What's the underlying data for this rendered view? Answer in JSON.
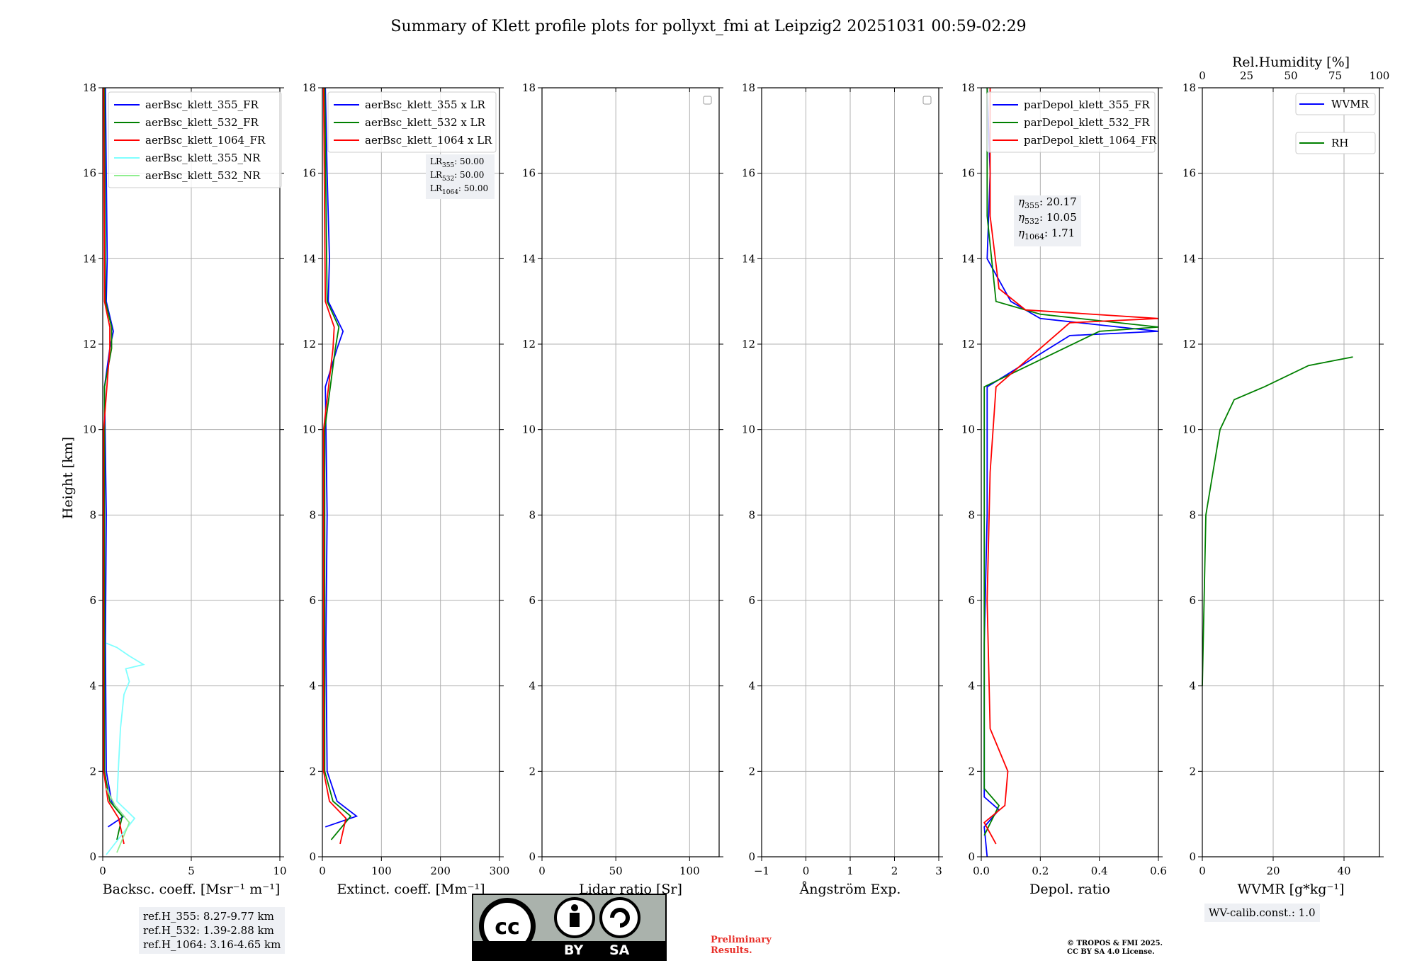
{
  "title": "Summary of Klett profile plots for pollyxt_fmi at Leipzig2 20251031 00:59-02:29",
  "y_axis_label": "Height [km]",
  "y_ticks": [
    "0",
    "2",
    "4",
    "6",
    "8",
    "10",
    "12",
    "14",
    "16",
    "18"
  ],
  "colors": {
    "b355": "#0000ff",
    "b532": "#008000",
    "b1064": "#ff0000",
    "nr355": "#7fffff",
    "nr532": "#90ee90"
  },
  "chart_data": [
    {
      "type": "line",
      "name": "backscatter",
      "xlabel": "Backsc. coeff. [Msr⁻¹ m⁻¹]",
      "ylabel": "Height [km]",
      "xlim": [
        0,
        10
      ],
      "ylim": [
        0,
        18
      ],
      "xticks": [
        "0",
        "5",
        "10"
      ],
      "legend": [
        "aerBsc_klett_355_FR",
        "aerBsc_klett_532_FR",
        "aerBsc_klett_1064_FR",
        "aerBsc_klett_355_NR",
        "aerBsc_klett_532_NR"
      ],
      "series": [
        {
          "name": "aerBsc_klett_355_FR",
          "color": "#0000ff",
          "points": [
            [
              0.3,
              0.7
            ],
            [
              1.2,
              0.95
            ],
            [
              0.5,
              1.3
            ],
            [
              0.2,
              2
            ],
            [
              0.15,
              5
            ],
            [
              0.2,
              8
            ],
            [
              0.1,
              11
            ],
            [
              0.4,
              11.9
            ],
            [
              0.6,
              12.3
            ],
            [
              0.2,
              13
            ],
            [
              0.25,
              14
            ],
            [
              0.2,
              16
            ],
            [
              0.15,
              18
            ]
          ]
        },
        {
          "name": "aerBsc_klett_532_FR",
          "color": "#008000",
          "points": [
            [
              0.8,
              0.4
            ],
            [
              1.1,
              0.95
            ],
            [
              0.4,
              1.3
            ],
            [
              0.1,
              2
            ],
            [
              0.1,
              6
            ],
            [
              0.1,
              11
            ],
            [
              0.5,
              11.9
            ],
            [
              0.5,
              12.4
            ],
            [
              0.15,
              13
            ],
            [
              0.1,
              18
            ]
          ]
        },
        {
          "name": "aerBsc_klett_1064_FR",
          "color": "#ff0000",
          "points": [
            [
              1.2,
              0.3
            ],
            [
              0.9,
              0.9
            ],
            [
              0.3,
              1.3
            ],
            [
              0.05,
              2
            ],
            [
              0.05,
              10
            ],
            [
              0.4,
              11.9
            ],
            [
              0.4,
              12.4
            ],
            [
              0.1,
              13
            ],
            [
              0.05,
              18
            ]
          ]
        },
        {
          "name": "aerBsc_klett_355_NR",
          "color": "#7fffff",
          "points": [
            [
              0.2,
              0.05
            ],
            [
              1.8,
              0.9
            ],
            [
              0.8,
              1.3
            ],
            [
              0.9,
              2.2
            ],
            [
              1.0,
              3
            ],
            [
              1.2,
              3.8
            ],
            [
              1.5,
              4.1
            ],
            [
              1.3,
              4.4
            ],
            [
              2.3,
              4.5
            ],
            [
              1.5,
              4.7
            ],
            [
              0.8,
              4.9
            ],
            [
              0.2,
              5.0
            ]
          ]
        },
        {
          "name": "aerBsc_klett_532_NR",
          "color": "#90ee90",
          "points": [
            [
              0.8,
              0.1
            ],
            [
              1.5,
              0.8
            ],
            [
              0.7,
              1.2
            ],
            [
              0.2,
              1.6
            ]
          ]
        }
      ],
      "info_box": [
        "ref.H_355: 8.27-9.77 km",
        "ref.H_532: 1.39-2.88 km",
        "ref.H_1064: 3.16-4.65 km"
      ]
    },
    {
      "type": "line",
      "name": "extinction",
      "xlabel": "Extinct. coeff. [Mm⁻¹]",
      "ylabel": "Height [km]",
      "xlim": [
        0,
        300
      ],
      "ylim": [
        0,
        18
      ],
      "xticks": [
        "0",
        "100",
        "200",
        "300"
      ],
      "legend": [
        "aerBsc_klett_355 x LR",
        "aerBsc_klett_532 x LR",
        "aerBsc_klett_1064 x LR"
      ],
      "series": [
        {
          "name": "aerBsc_klett_355 x LR",
          "color": "#0000ff",
          "points": [
            [
              5,
              0.7
            ],
            [
              58,
              0.95
            ],
            [
              25,
              1.3
            ],
            [
              8,
              2
            ],
            [
              6,
              5
            ],
            [
              8,
              8
            ],
            [
              5,
              11
            ],
            [
              25,
              11.9
            ],
            [
              35,
              12.3
            ],
            [
              10,
              13
            ],
            [
              12,
              14
            ],
            [
              8,
              16
            ],
            [
              5,
              18
            ]
          ]
        },
        {
          "name": "aerBsc_klett_532 x LR",
          "color": "#008000",
          "points": [
            [
              15,
              0.4
            ],
            [
              48,
              0.95
            ],
            [
              18,
              1.3
            ],
            [
              4,
              2
            ],
            [
              4,
              10
            ],
            [
              22,
              11.9
            ],
            [
              28,
              12.4
            ],
            [
              8,
              13
            ],
            [
              4,
              18
            ]
          ]
        },
        {
          "name": "aerBsc_klett_1064 x LR",
          "color": "#ff0000",
          "points": [
            [
              30,
              0.3
            ],
            [
              40,
              0.9
            ],
            [
              12,
              1.3
            ],
            [
              2,
              2
            ],
            [
              2,
              10
            ],
            [
              18,
              11.9
            ],
            [
              20,
              12.4
            ],
            [
              5,
              13
            ],
            [
              2,
              18
            ]
          ]
        }
      ],
      "annotation": [
        {
          "sub": "355",
          "val": "50.00"
        },
        {
          "sub": "532",
          "val": "50.00"
        },
        {
          "sub": "1064",
          "val": "50.00"
        }
      ]
    },
    {
      "type": "line",
      "name": "lidar_ratio",
      "xlabel": "Lidar ratio [Sr]",
      "ylabel": "Height [km]",
      "xlim": [
        0,
        120
      ],
      "ylim": [
        0,
        18
      ],
      "xticks": [
        "0",
        "50",
        "100"
      ],
      "series": []
    },
    {
      "type": "line",
      "name": "angstrom",
      "xlabel": "Ångström Exp.",
      "ylabel": "Height [km]",
      "xlim": [
        -1,
        3
      ],
      "ylim": [
        0,
        18
      ],
      "xticks": [
        "−1",
        "0",
        "1",
        "2",
        "3"
      ],
      "series": []
    },
    {
      "type": "line",
      "name": "depol",
      "xlabel": "Depol. ratio",
      "ylabel": "Height [km]",
      "xlim": [
        0,
        0.6
      ],
      "ylim": [
        0,
        18
      ],
      "xticks": [
        "0.0",
        "0.2",
        "0.4",
        "0.6"
      ],
      "legend": [
        "parDepol_klett_355_FR",
        "parDepol_klett_532_FR",
        "parDepol_klett_1064_FR"
      ],
      "series": [
        {
          "name": "parDepol_klett_355_FR",
          "color": "#0000ff",
          "points": [
            [
              0.02,
              0
            ],
            [
              0.01,
              0.7
            ],
            [
              0.06,
              1.1
            ],
            [
              0.01,
              1.4
            ],
            [
              0.01,
              5
            ],
            [
              0.02,
              8
            ],
            [
              0.02,
              11
            ],
            [
              0.3,
              12.2
            ],
            [
              0.6,
              12.3
            ],
            [
              0.2,
              12.6
            ],
            [
              0.1,
              13
            ],
            [
              0.02,
              14
            ],
            [
              0.03,
              16
            ],
            [
              0.02,
              18
            ]
          ]
        },
        {
          "name": "parDepol_klett_532_FR",
          "color": "#008000",
          "points": [
            [
              0.01,
              0.5
            ],
            [
              0.06,
              1.2
            ],
            [
              0.01,
              1.6
            ],
            [
              0.01,
              2.5
            ],
            [
              0.01,
              4
            ],
            [
              0.01,
              11
            ],
            [
              0.4,
              12.3
            ],
            [
              0.6,
              12.4
            ],
            [
              0.2,
              12.7
            ],
            [
              0.05,
              13
            ],
            [
              0.02,
              15
            ],
            [
              0.02,
              18
            ]
          ]
        },
        {
          "name": "parDepol_klett_1064_FR",
          "color": "#ff0000",
          "points": [
            [
              0.05,
              0.3
            ],
            [
              0.01,
              0.8
            ],
            [
              0.08,
              1.2
            ],
            [
              0.09,
              2
            ],
            [
              0.03,
              3
            ],
            [
              0.02,
              6
            ],
            [
              0.03,
              9
            ],
            [
              0.05,
              11
            ],
            [
              0.3,
              12.5
            ],
            [
              0.6,
              12.6
            ],
            [
              0.15,
              12.8
            ],
            [
              0.06,
              13.3
            ],
            [
              0.03,
              15
            ],
            [
              0.03,
              18
            ]
          ]
        }
      ],
      "annotation": [
        {
          "sub": "355",
          "val": "20.17"
        },
        {
          "sub": "532",
          "val": "10.05"
        },
        {
          "sub": "1064",
          "val": "1.71"
        }
      ]
    },
    {
      "type": "line",
      "name": "wvmr_rh",
      "xlabel": "WVMR [g*kg⁻¹]",
      "x2label": "Rel.Humidity [%]",
      "ylabel": "Height [km]",
      "xlim": [
        0,
        50
      ],
      "x2lim": [
        0,
        100
      ],
      "ylim": [
        0,
        18
      ],
      "xticks": [
        "0",
        "20",
        "40"
      ],
      "x2ticks": [
        "0",
        "25",
        "50",
        "75",
        "100"
      ],
      "legend": [
        "WVMR",
        "RH"
      ],
      "series": [
        {
          "name": "WVMR",
          "color": "#0000ff",
          "points": []
        },
        {
          "name": "RH",
          "color": "#008000",
          "axis": "x2",
          "points": [
            [
              0,
              4
            ],
            [
              1,
              6
            ],
            [
              2,
              8
            ],
            [
              6,
              9
            ],
            [
              10,
              10
            ],
            [
              18,
              10.7
            ],
            [
              35,
              11
            ],
            [
              60,
              11.5
            ],
            [
              85,
              11.7
            ]
          ]
        }
      ],
      "info_box": [
        "WV-calib.const.: 1.0"
      ]
    }
  ],
  "footer": {
    "cc_by": "BY",
    "cc_sa": "SA",
    "preliminary": [
      "Preliminary",
      "Results."
    ],
    "copyright": [
      "© TROPOS & FMI 2025.",
      "CC BY SA 4.0 License."
    ]
  }
}
